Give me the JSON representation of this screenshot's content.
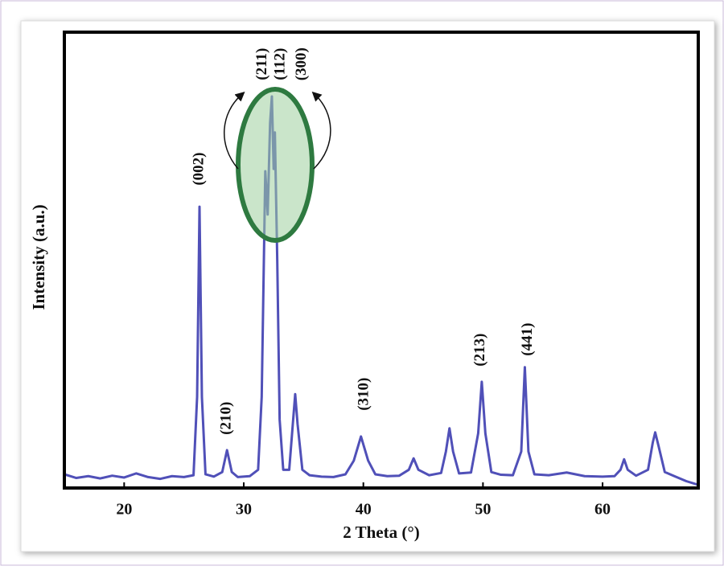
{
  "chart_data": {
    "type": "line",
    "xlabel": "2 Theta (°)",
    "ylabel": "Intensity (a.u.)",
    "xlim": [
      15,
      68
    ],
    "xticks": [
      20,
      30,
      40,
      50,
      60
    ],
    "ylim": [
      0,
      100
    ],
    "series": [
      {
        "color": "#5050b8",
        "x": [
          15,
          16,
          17,
          18,
          19,
          20,
          21,
          22,
          23,
          24,
          25,
          25.8,
          26.1,
          26.3,
          26.5,
          26.8,
          27.5,
          28.2,
          28.6,
          29.0,
          29.5,
          30.5,
          31.2,
          31.5,
          31.8,
          32.0,
          32.2,
          32.35,
          32.5,
          32.6,
          32.8,
          33.0,
          33.3,
          33.8,
          34.1,
          34.3,
          34.5,
          34.9,
          35.5,
          36.5,
          37.5,
          38.5,
          39.2,
          39.8,
          40.4,
          41,
          42,
          43,
          43.8,
          44.2,
          44.6,
          45.5,
          46.5,
          46.9,
          47.2,
          47.5,
          48,
          49,
          49.6,
          49.9,
          50.2,
          50.7,
          51.5,
          52.5,
          53.2,
          53.5,
          53.8,
          54.3,
          55.5,
          57,
          58.5,
          60,
          61,
          61.5,
          61.8,
          62.1,
          62.8,
          63.8,
          64.2,
          64.4,
          64.7,
          65.2,
          66,
          67,
          68
        ],
        "values": [
          3,
          2.2,
          2.6,
          2.1,
          2.7,
          2.3,
          3.2,
          2.4,
          2.0,
          2.6,
          2.4,
          2.8,
          20,
          61.7,
          20,
          3,
          2.5,
          3.5,
          8.3,
          3.5,
          2.4,
          2.6,
          4,
          20,
          69.5,
          60,
          80,
          85.9,
          70,
          78,
          50,
          15,
          4,
          4,
          14,
          20.6,
          14,
          4,
          2.8,
          2.5,
          2.4,
          3,
          6,
          11.3,
          6,
          3,
          2.6,
          2.7,
          4,
          6.5,
          4,
          2.8,
          3.3,
          8,
          13.1,
          8,
          3.2,
          3.4,
          12,
          23.3,
          12,
          3.5,
          2.9,
          2.8,
          8,
          26.5,
          8,
          3,
          2.8,
          3.4,
          2.6,
          2.5,
          2.6,
          4,
          6.3,
          4,
          2.7,
          4,
          10,
          12.2,
          9,
          3.5,
          2.6,
          1.5,
          0.7
        ]
      }
    ],
    "annotations": [
      {
        "text": "(002)",
        "x": 26.3,
        "y": 70
      },
      {
        "text": "(210)",
        "x": 28.6,
        "y": 15.3
      },
      {
        "text": "(211)",
        "x": 31.6,
        "y": 93
      },
      {
        "text": "(112)",
        "x": 33.1,
        "y": 93
      },
      {
        "text": "(300)",
        "x": 34.9,
        "y": 93
      },
      {
        "text": "(310)",
        "x": 40.1,
        "y": 20.6
      },
      {
        "text": "(213)",
        "x": 49.8,
        "y": 30.3
      },
      {
        "text": "(441)",
        "x": 53.8,
        "y": 32.6
      }
    ]
  }
}
